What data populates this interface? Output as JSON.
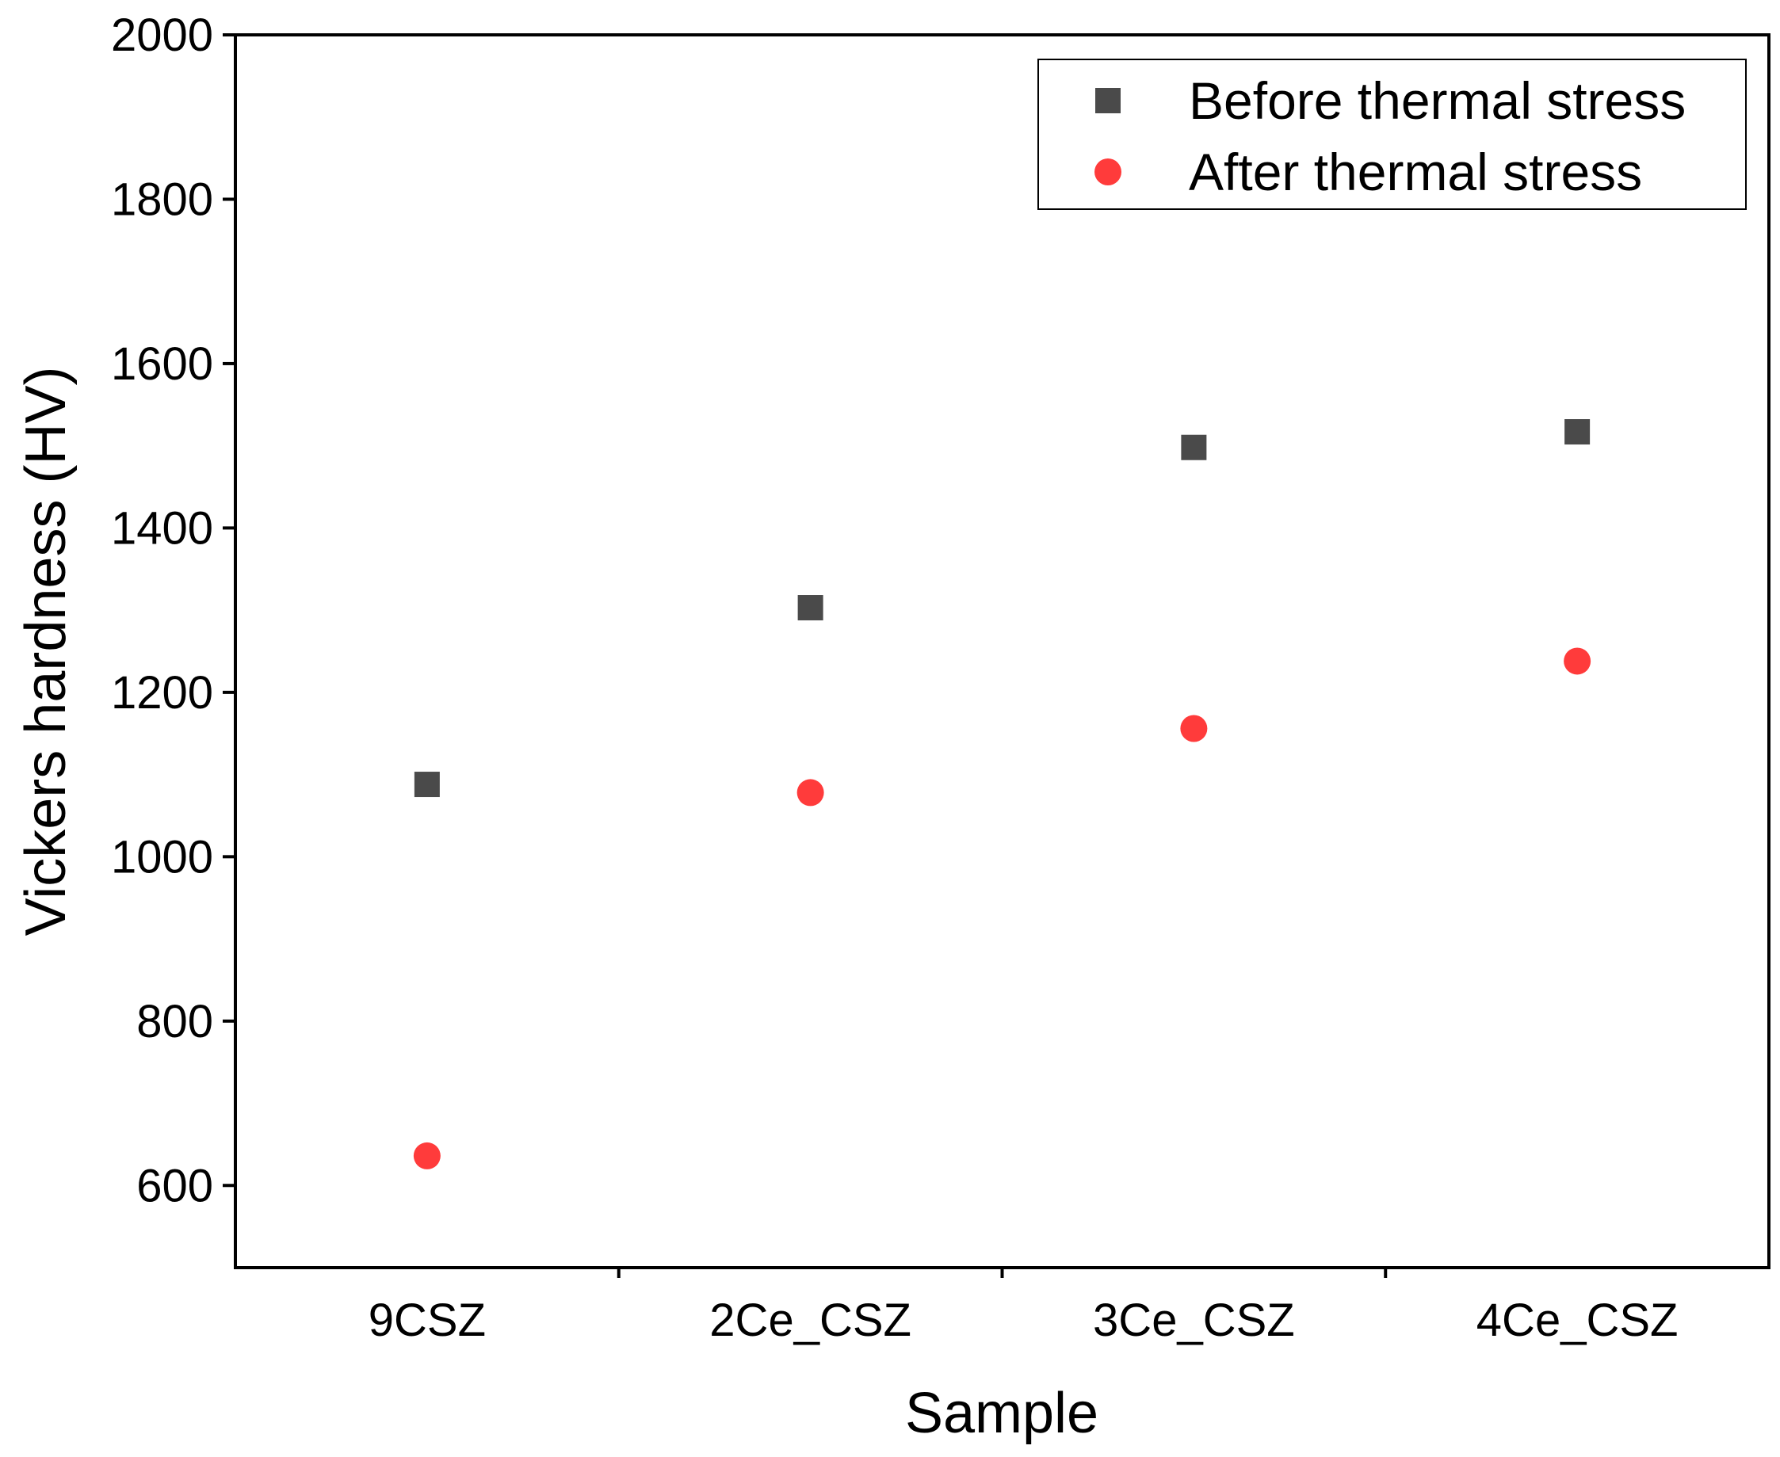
{
  "chart_data": {
    "type": "scatter",
    "title": "",
    "xlabel": "Sample",
    "ylabel": "Vickers hardness (HV)",
    "categories": [
      "9CSZ",
      "2Ce_CSZ",
      "3Ce_CSZ",
      "4Ce_CSZ"
    ],
    "ylim": [
      500,
      2000
    ],
    "yticks": [
      600,
      800,
      1000,
      1200,
      1400,
      1600,
      1800,
      2000
    ],
    "yticklabels": [
      "600",
      "800",
      "1000",
      "1200",
      "1400",
      "1600",
      "1800",
      "2000"
    ],
    "grid": false,
    "legend_position": "top-right",
    "series": [
      {
        "name": "Before thermal stress",
        "marker": "square",
        "color": "#4a4a4a",
        "values": [
          1088,
          1303,
          1498,
          1517
        ]
      },
      {
        "name": "After thermal stress",
        "marker": "circle",
        "color": "#ff3b3b",
        "values": [
          636,
          1078,
          1156,
          1238
        ]
      }
    ]
  }
}
